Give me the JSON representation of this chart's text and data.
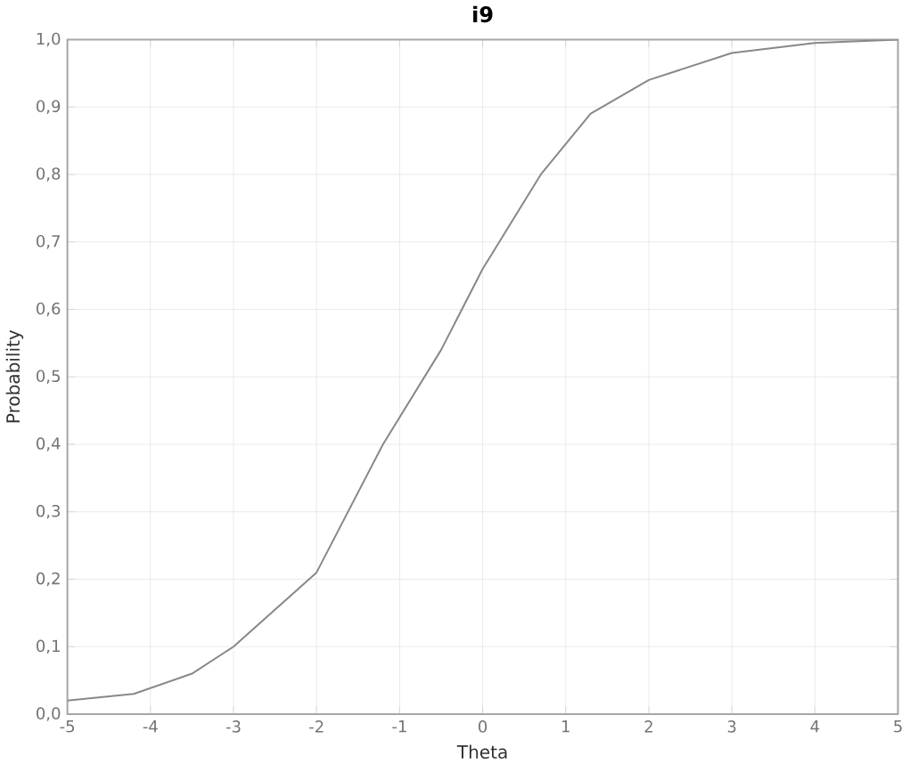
{
  "chart_data": {
    "type": "line",
    "title": "i9",
    "xlabel": "Theta",
    "ylabel": "Probability",
    "x": [
      -5,
      -4.2,
      -3.5,
      -3,
      -2,
      -1.2,
      -0.5,
      0,
      0.2,
      0.7,
      1.3,
      2,
      3,
      4,
      5
    ],
    "values": [
      0.02,
      0.03,
      0.06,
      0.1,
      0.21,
      0.4,
      0.54,
      0.66,
      0.7,
      0.8,
      0.89,
      0.94,
      0.98,
      0.995,
      1.0
    ],
    "color": "#888888",
    "xlim": [
      -5,
      5
    ],
    "xticks": [
      -5,
      -4,
      -3,
      -2,
      -1,
      0,
      1,
      2,
      3,
      4,
      5
    ],
    "ylim": [
      0,
      1
    ],
    "yticks": [
      {
        "value": 0,
        "label": "0,0"
      },
      {
        "value": 0.1,
        "label": "0,1"
      },
      {
        "value": 0.2,
        "label": "0,2"
      },
      {
        "value": 0.3,
        "label": "0,3"
      },
      {
        "value": 0.4,
        "label": "0,4"
      },
      {
        "value": 0.5,
        "label": "0,5"
      },
      {
        "value": 0.6,
        "label": "0,6"
      },
      {
        "value": 0.7,
        "label": "0,7"
      },
      {
        "value": 0.8,
        "label": "0,8"
      },
      {
        "value": 0.9,
        "label": "0,9"
      },
      {
        "value": 1,
        "label": "1,0"
      }
    ],
    "grid": true
  }
}
